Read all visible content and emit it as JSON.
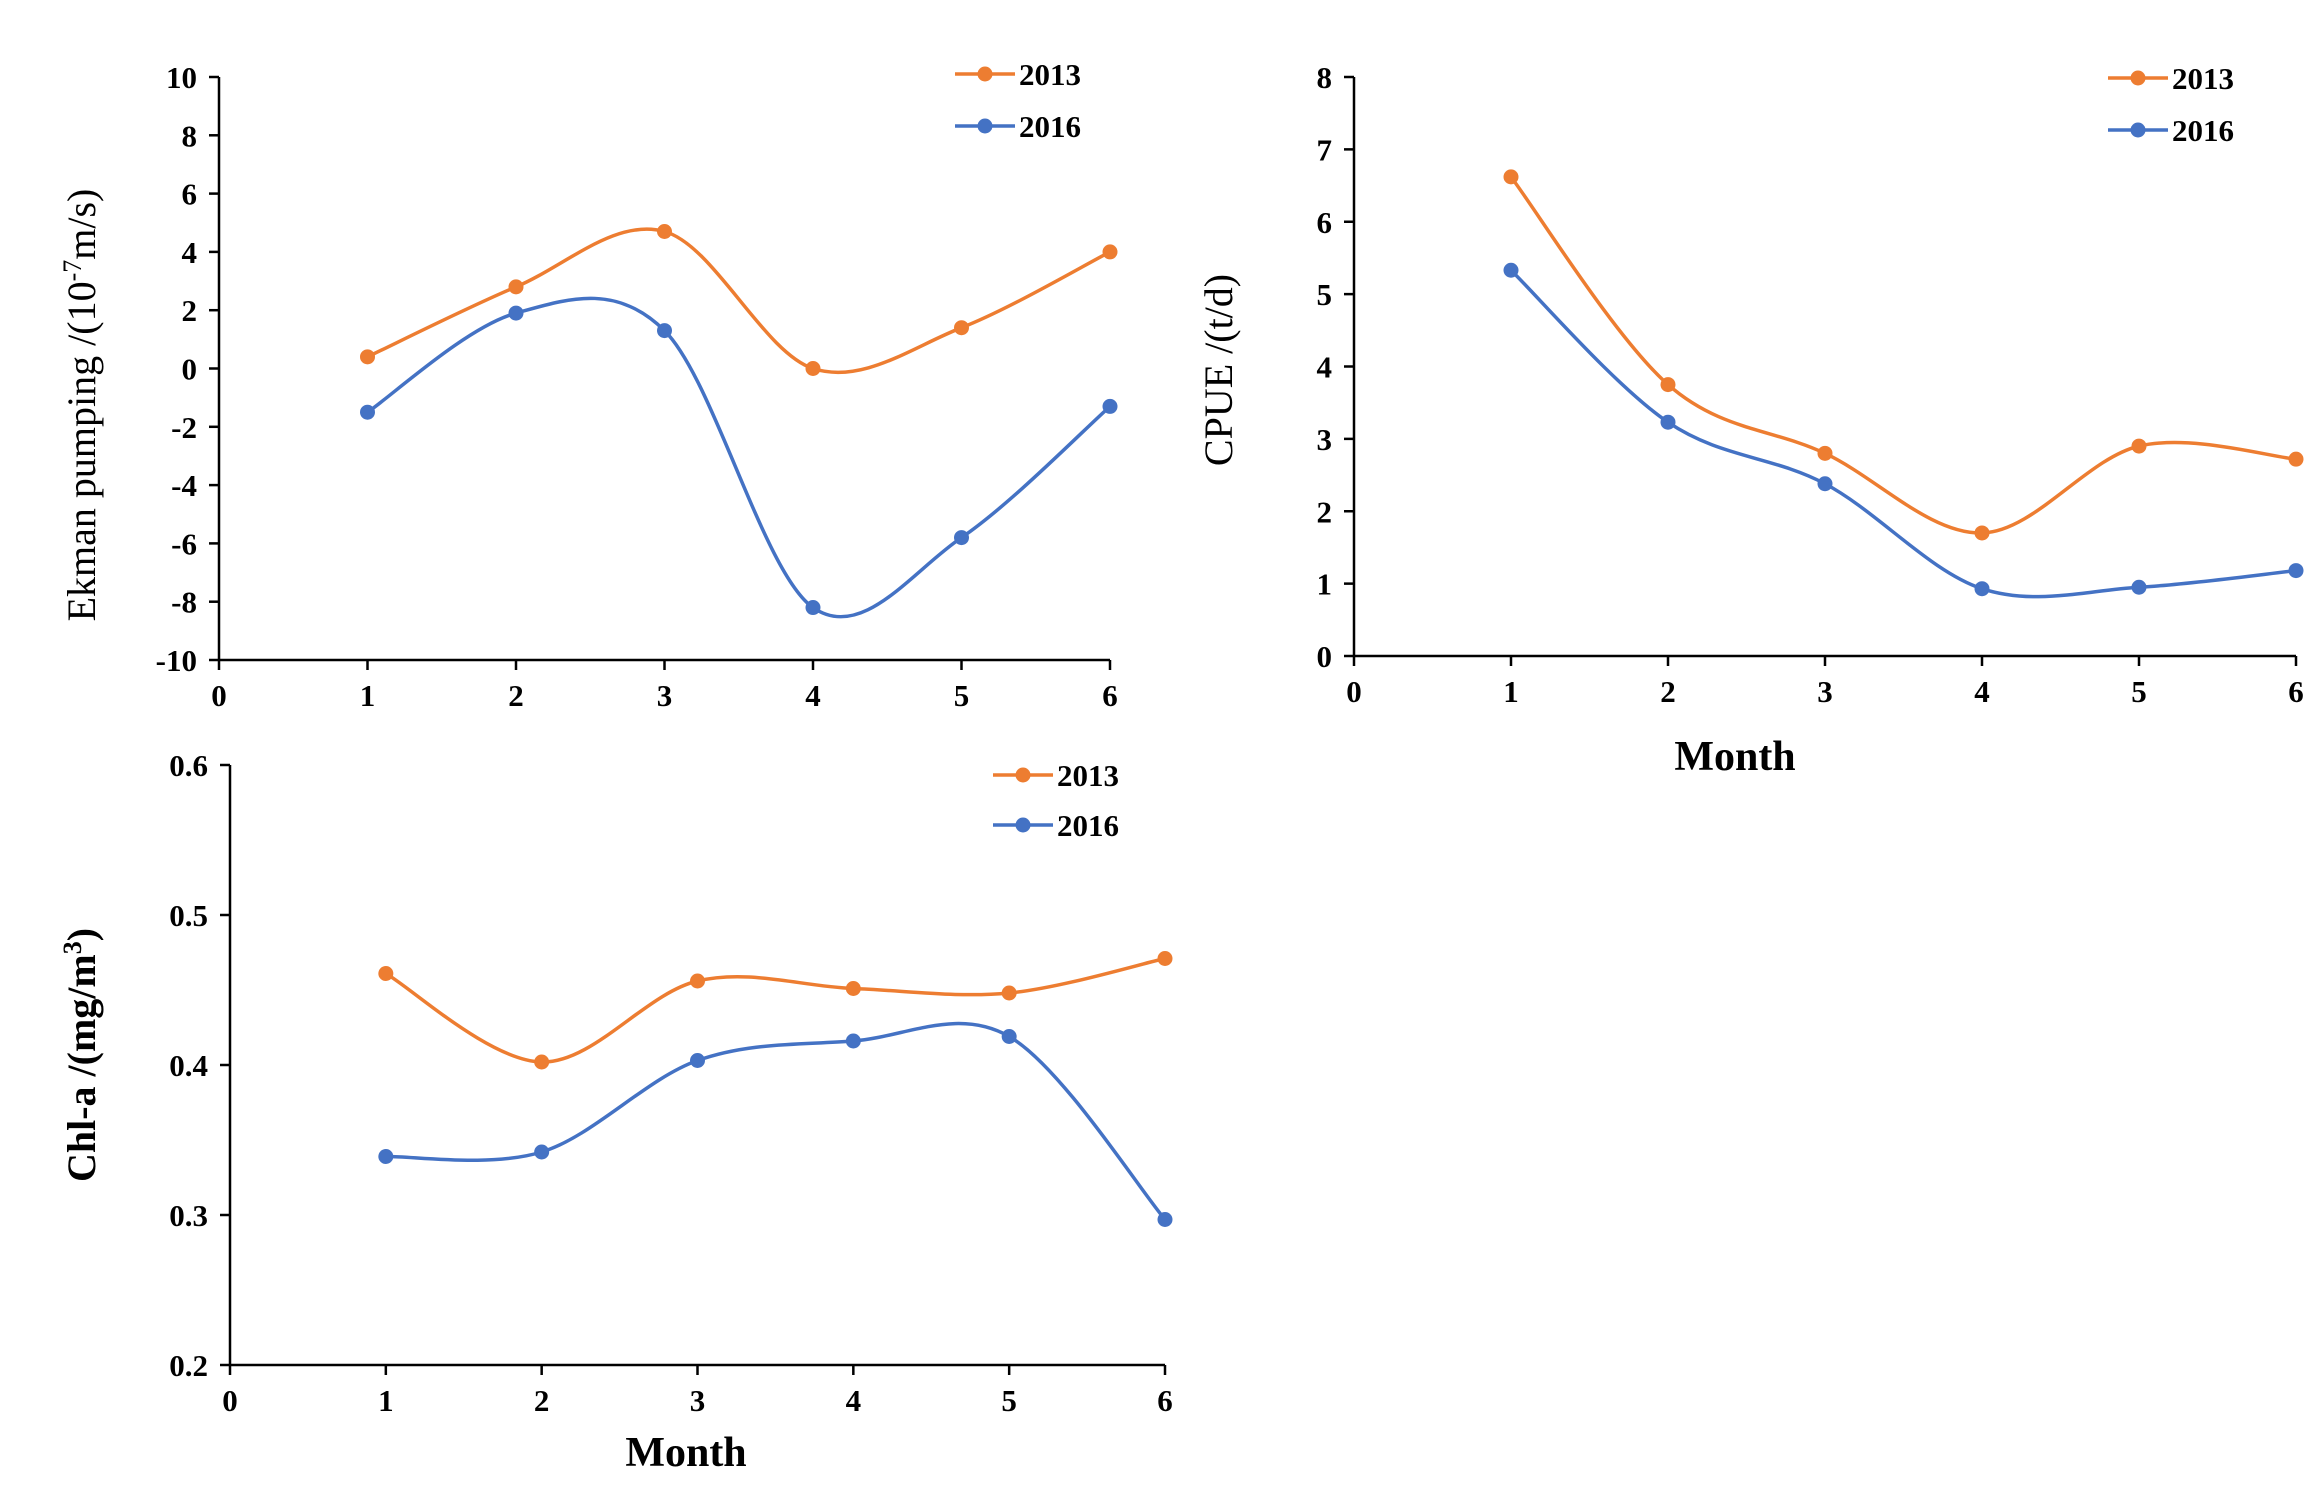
{
  "colors": {
    "s2013": "#ED7D31",
    "s2016": "#4472C4",
    "axis": "#000000"
  },
  "chart_data": [
    {
      "id": "ekman",
      "type": "line",
      "title": "",
      "ylabel": "Ekman pumping /(10",
      "ylabel_sup": "-7",
      "ylabel_tail": "m/s)",
      "xlabel": "",
      "xlim": [
        0,
        6
      ],
      "ylim": [
        -10,
        10
      ],
      "xticks": [
        "0",
        "1",
        "2",
        "3",
        "4",
        "5",
        "6"
      ],
      "yticks": [
        "-10",
        "-8",
        "-6",
        "-4",
        "-2",
        "0",
        "2",
        "4",
        "6",
        "8",
        "10"
      ],
      "x": [
        1,
        2,
        3,
        4,
        5,
        6
      ],
      "legend": {
        "position": "top-right",
        "entries": [
          "2013",
          "2016"
        ]
      },
      "series": [
        {
          "name": "2013",
          "values": [
            0.4,
            2.8,
            4.7,
            0.0,
            1.4,
            4.0
          ]
        },
        {
          "name": "2016",
          "values": [
            -1.5,
            1.9,
            1.3,
            -8.2,
            -5.8,
            -1.3
          ]
        }
      ]
    },
    {
      "id": "cpue",
      "type": "line",
      "title": "",
      "ylabel": "CPUE /(t/d)",
      "xlabel": "Month",
      "xlim": [
        0,
        6
      ],
      "ylim": [
        0,
        8
      ],
      "xticks": [
        "0",
        "1",
        "2",
        "3",
        "4",
        "5",
        "6"
      ],
      "yticks": [
        "0",
        "1",
        "2",
        "3",
        "4",
        "5",
        "6",
        "7",
        "8"
      ],
      "x": [
        1,
        2,
        3,
        4,
        5,
        6
      ],
      "legend": {
        "position": "top-right",
        "entries": [
          "2013",
          "2016"
        ]
      },
      "series": [
        {
          "name": "2013",
          "values": [
            6.62,
            3.75,
            2.8,
            1.7,
            2.9,
            2.72
          ]
        },
        {
          "name": "2016",
          "values": [
            5.33,
            3.23,
            2.38,
            0.93,
            0.95,
            1.18
          ]
        }
      ]
    },
    {
      "id": "chla",
      "type": "line",
      "title": "",
      "ylabel": "Chl-a /(mg/m",
      "ylabel_sup": "3",
      "ylabel_tail": ")",
      "xlabel": "Month",
      "xlim": [
        0,
        6
      ],
      "ylim": [
        0.2,
        0.6
      ],
      "xticks": [
        "0",
        "1",
        "2",
        "3",
        "4",
        "5",
        "6"
      ],
      "yticks": [
        "0.2",
        "0.3",
        "0.4",
        "0.5",
        "0.6"
      ],
      "x": [
        1,
        2,
        3,
        4,
        5,
        6
      ],
      "legend": {
        "position": "top-right",
        "entries": [
          "2013",
          "2016"
        ]
      },
      "series": [
        {
          "name": "2013",
          "values": [
            0.461,
            0.402,
            0.456,
            0.451,
            0.448,
            0.471
          ]
        },
        {
          "name": "2016",
          "values": [
            0.339,
            0.342,
            0.403,
            0.416,
            0.419,
            0.297
          ]
        }
      ]
    }
  ]
}
